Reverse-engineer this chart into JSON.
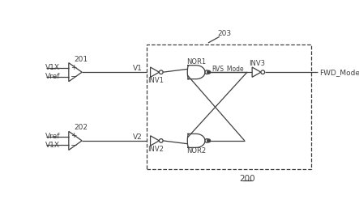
{
  "background": "#ffffff",
  "text_color": "#404040",
  "line_color": "#404040",
  "fig_width": 4.43,
  "fig_height": 2.62,
  "dpi": 100,
  "label_200": "200",
  "label_201": "201",
  "label_202": "202",
  "label_203": "203",
  "label_V1X_top": "V1X",
  "label_Vref_top": "Vref",
  "label_V1": "V1",
  "label_V2": "V2",
  "label_Vref_bot": "Vref",
  "label_V1X_bot": "V1X",
  "label_INV1": "INV1",
  "label_INV2": "INV2",
  "label_INV3": "INV3",
  "label_NOR1": "NOR1",
  "label_NOR2": "NOR2",
  "label_RVS": "RVS_Mode",
  "label_FWD": "FWD_Mode"
}
